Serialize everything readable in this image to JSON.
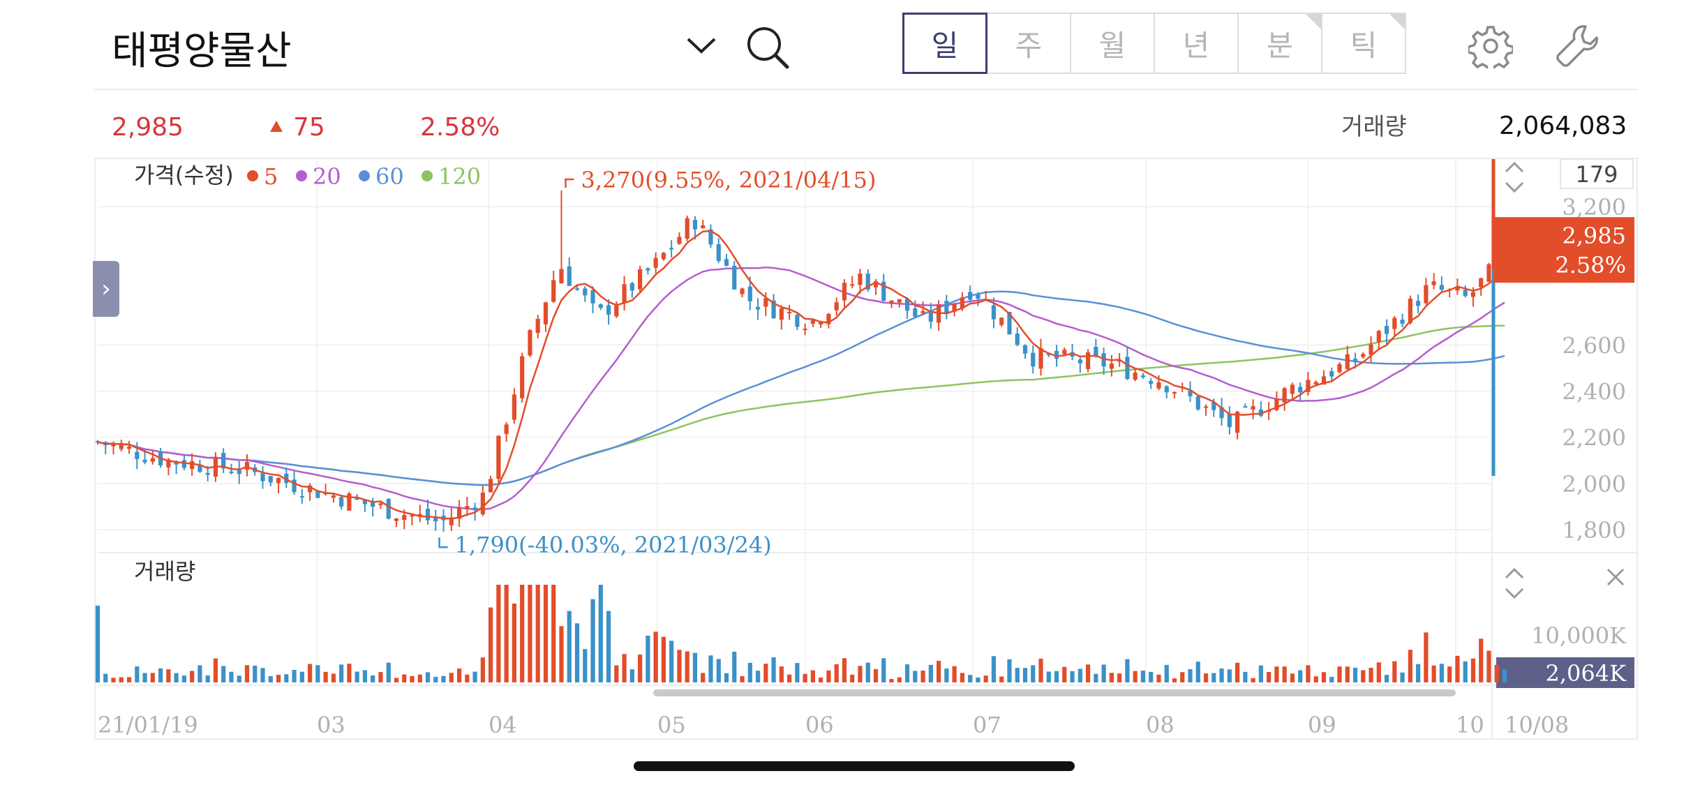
{
  "header": {
    "title": "태평양물산",
    "dropdown_icon": "chevron-down-icon",
    "search_icon": "search-icon",
    "tabs": [
      {
        "label": "일",
        "active": true
      },
      {
        "label": "주"
      },
      {
        "label": "월"
      },
      {
        "label": "년"
      },
      {
        "label": "분",
        "corner": true
      },
      {
        "label": "틱",
        "corner": true
      }
    ],
    "settings_icon": "gear-icon",
    "tools_icon": "wrench-icon"
  },
  "quote": {
    "price": "2,985",
    "change_icon": "triangle-up-icon",
    "change": "75",
    "change_pct": "2.58%",
    "volume_label": "거래량",
    "volume": "2,064,083"
  },
  "colors": {
    "up": "#e24d2a",
    "down": "#3b91c9",
    "ma5": "#e24d2a",
    "ma20": "#b65cd1",
    "ma60": "#5b8fd8",
    "ma120": "#8dc360",
    "volume_badge": "#5d6189"
  },
  "chart_data": {
    "type": "candlestick",
    "price_panel": {
      "legend_title": "가격(수정)",
      "legend": [
        {
          "name": "5",
          "color": "#e24d2a"
        },
        {
          "name": "20",
          "color": "#b65cd1"
        },
        {
          "name": "60",
          "color": "#5b8fd8"
        },
        {
          "name": "120",
          "color": "#8dc360"
        }
      ],
      "count_label": "179",
      "y_ticks": [
        "3,200",
        "2,600",
        "2,400",
        "2,200",
        "2,000",
        "1,800"
      ],
      "y_tick_values": [
        3200,
        2600,
        2400,
        2200,
        2000,
        1800
      ],
      "ylim": [
        1700,
        3400
      ],
      "current_price": "2,985",
      "current_pct": "2.58%",
      "high_annotation": "3,270(9.55%, 2021/04/15)",
      "low_annotation": "1,790(-40.03%, 2021/03/24)",
      "series_approx": [
        {
          "date": "2021-01-19",
          "close": 2180
        },
        {
          "date": "2021-02-01",
          "close": 2100
        },
        {
          "date": "2021-02-15",
          "close": 2060
        },
        {
          "date": "2021-03-02",
          "close": 1960
        },
        {
          "date": "2021-03-15",
          "close": 1880
        },
        {
          "date": "2021-03-24",
          "close": 1830
        },
        {
          "date": "2021-04-01",
          "close": 1950
        },
        {
          "date": "2021-04-09",
          "close": 2600
        },
        {
          "date": "2021-04-15",
          "close": 2950
        },
        {
          "date": "2021-04-22",
          "close": 2720
        },
        {
          "date": "2021-05-03",
          "close": 2950
        },
        {
          "date": "2021-05-10",
          "close": 3150
        },
        {
          "date": "2021-05-20",
          "close": 2800
        },
        {
          "date": "2021-06-01",
          "close": 2700
        },
        {
          "date": "2021-06-10",
          "close": 2900
        },
        {
          "date": "2021-06-22",
          "close": 2700
        },
        {
          "date": "2021-07-01",
          "close": 2850
        },
        {
          "date": "2021-07-12",
          "close": 2550
        },
        {
          "date": "2021-07-26",
          "close": 2520
        },
        {
          "date": "2021-08-05",
          "close": 2450
        },
        {
          "date": "2021-08-18",
          "close": 2250
        },
        {
          "date": "2021-08-30",
          "close": 2420
        },
        {
          "date": "2021-09-10",
          "close": 2530
        },
        {
          "date": "2021-09-24",
          "close": 2850
        },
        {
          "date": "2021-10-01",
          "close": 2800
        },
        {
          "date": "2021-10-08",
          "close": 2985
        }
      ]
    },
    "volume_panel": {
      "title": "거래량",
      "y_tick": "10,000K",
      "current": "2,064K"
    },
    "x_ticks": [
      "21/01/19",
      "03",
      "04",
      "05",
      "06",
      "07",
      "08",
      "09",
      "10",
      "10/08"
    ]
  }
}
